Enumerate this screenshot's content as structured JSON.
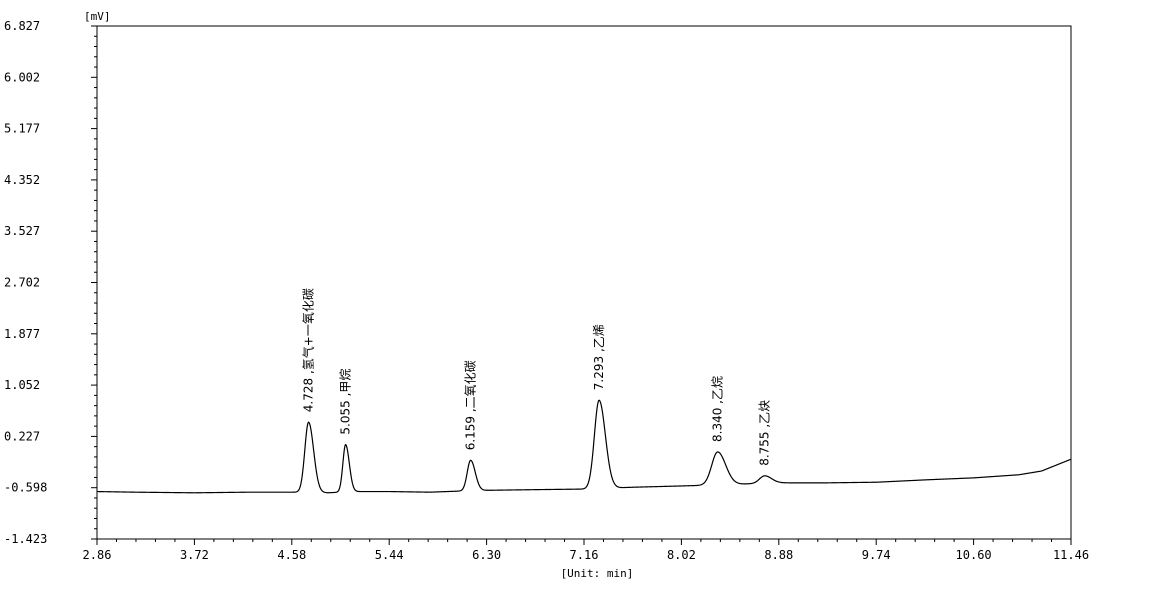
{
  "chart_data": {
    "type": "line",
    "y_unit_label": "[mV]",
    "x_unit_label": "[Unit: min]",
    "xlim": [
      2.86,
      11.46
    ],
    "ylim": [
      -1.423,
      6.827
    ],
    "x_ticks": [
      {
        "v": 2.86,
        "label": "2.86"
      },
      {
        "v": 3.72,
        "label": "3.72"
      },
      {
        "v": 4.58,
        "label": "4.58"
      },
      {
        "v": 5.44,
        "label": "5.44"
      },
      {
        "v": 6.3,
        "label": "6.30"
      },
      {
        "v": 7.16,
        "label": "7.16"
      },
      {
        "v": 8.02,
        "label": "8.02"
      },
      {
        "v": 8.88,
        "label": "8.88"
      },
      {
        "v": 9.74,
        "label": "9.74"
      },
      {
        "v": 10.6,
        "label": "10.60"
      },
      {
        "v": 11.46,
        "label": "11.46"
      }
    ],
    "y_ticks": [
      {
        "v": 6.827,
        "label": "6.827"
      },
      {
        "v": 6.002,
        "label": "6.002"
      },
      {
        "v": 5.177,
        "label": "5.177"
      },
      {
        "v": 4.352,
        "label": "4.352"
      },
      {
        "v": 3.527,
        "label": "3.527"
      },
      {
        "v": 2.702,
        "label": "2.702"
      },
      {
        "v": 1.877,
        "label": "1.877"
      },
      {
        "v": 1.052,
        "label": "1.052"
      },
      {
        "v": 0.227,
        "label": "0.227"
      },
      {
        "v": -0.598,
        "label": "-0.598"
      },
      {
        "v": -1.423,
        "label": "-1.423"
      }
    ],
    "baseline": [
      [
        2.86,
        -0.66
      ],
      [
        3.2,
        -0.67
      ],
      [
        3.72,
        -0.68
      ],
      [
        4.2,
        -0.67
      ],
      [
        4.6,
        -0.67
      ],
      [
        4.9,
        -0.68
      ],
      [
        5.1,
        -0.66
      ],
      [
        5.44,
        -0.66
      ],
      [
        5.8,
        -0.67
      ],
      [
        6.1,
        -0.65
      ],
      [
        6.3,
        -0.64
      ],
      [
        6.7,
        -0.63
      ],
      [
        7.16,
        -0.62
      ],
      [
        7.6,
        -0.59
      ],
      [
        8.02,
        -0.57
      ],
      [
        8.4,
        -0.55
      ],
      [
        8.7,
        -0.53
      ],
      [
        8.88,
        -0.52
      ],
      [
        9.3,
        -0.52
      ],
      [
        9.74,
        -0.51
      ],
      [
        10.2,
        -0.47
      ],
      [
        10.6,
        -0.44
      ],
      [
        11.0,
        -0.39
      ],
      [
        11.2,
        -0.33
      ],
      [
        11.35,
        -0.22
      ],
      [
        11.46,
        -0.14
      ]
    ],
    "series": [
      {
        "type": "peaks",
        "values": [
          {
            "rt": 4.728,
            "label": "4.728 ,氢气+一氧化碳",
            "height": 1.13,
            "sigma": 0.033
          },
          {
            "rt": 5.055,
            "label": "5.055 ,甲烷",
            "height": 0.76,
            "sigma": 0.024
          },
          {
            "rt": 6.159,
            "label": "6.159 ,二氧化碳",
            "height": 0.49,
            "sigma": 0.03
          },
          {
            "rt": 7.293,
            "label": "7.293 ,乙烯",
            "height": 1.42,
            "sigma": 0.041
          },
          {
            "rt": 8.34,
            "label": "8.340 ,乙烷",
            "height": 0.53,
            "sigma": 0.052
          },
          {
            "rt": 8.755,
            "label": "8.755 ,乙炔",
            "height": 0.12,
            "sigma": 0.045
          }
        ]
      }
    ],
    "grid": false,
    "legend": "none"
  }
}
